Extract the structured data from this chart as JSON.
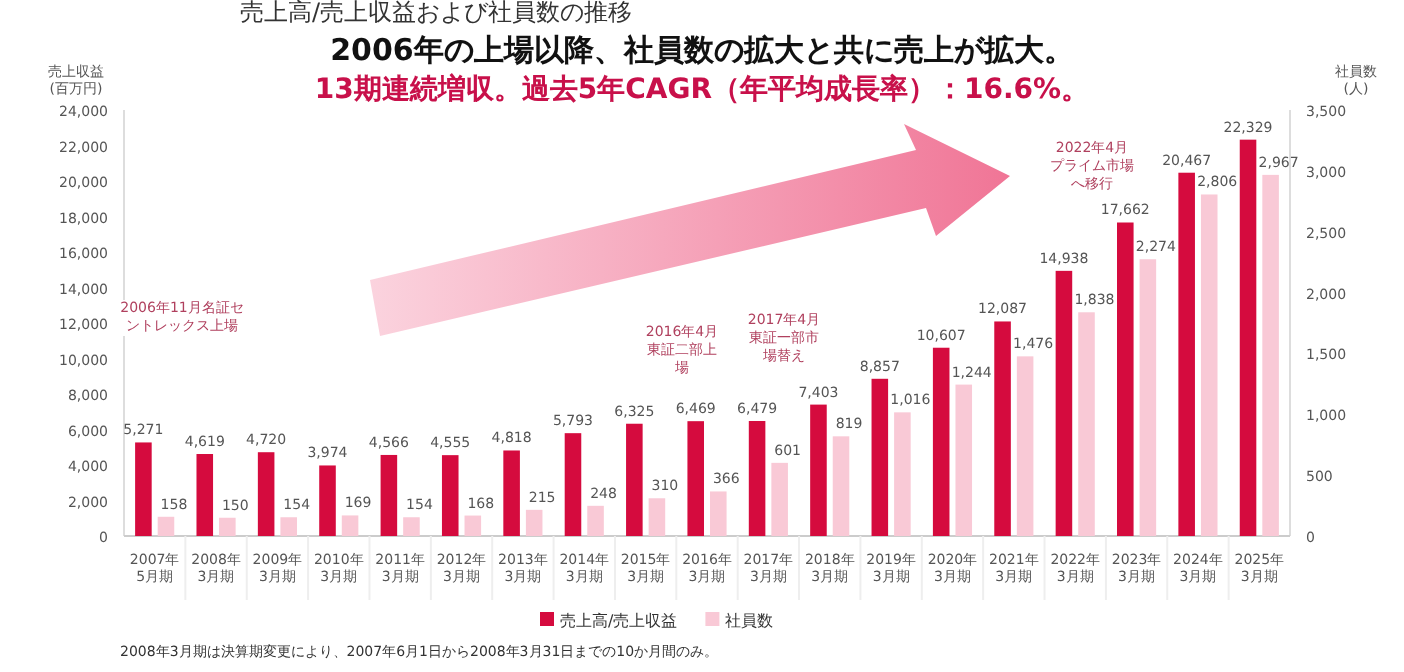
{
  "chart_data": {
    "type": "bar",
    "title": "売上高/売上収益および社員数の推移",
    "subtitle": "2006年の上場以降、社員数の拡大と共に売上が拡大。",
    "ylabel": "売上収益\n(百万円)",
    "y2label": "社員数\n(人)",
    "categories": [
      "2007年\n5月期",
      "2008年\n3月期",
      "2009年\n3月期",
      "2010年\n3月期",
      "2011年\n3月期",
      "2012年\n3月期",
      "2013年\n3月期",
      "2014年\n3月期",
      "2015年\n3月期",
      "2016年\n3月期",
      "2017年\n3月期",
      "2018年\n3月期",
      "2019年\n3月期",
      "2020年\n3月期",
      "2021年\n3月期",
      "2022年\n3月期",
      "2023年\n3月期",
      "2024年\n3月期",
      "2025年\n3月期"
    ],
    "series": [
      {
        "name": "売上高/売上収益",
        "color": "#d50b3e",
        "values": [
          5271,
          4619,
          4720,
          3974,
          4566,
          4555,
          4818,
          5793,
          6325,
          6469,
          6479,
          7403,
          8857,
          10607,
          12087,
          14938,
          17662,
          20467,
          22329
        ],
        "value_labels": [
          "5,271",
          "4,619",
          "4,720",
          "3,974",
          "4,566",
          "4,555",
          "4,818",
          "5,793",
          "6,325",
          "6,469",
          "6,479",
          "7,403",
          "8,857",
          "10,607",
          "12,087",
          "14,938",
          "17,662",
          "20,467",
          "22,329"
        ]
      },
      {
        "name": "社員数",
        "color": "#f9c9d6",
        "axis": "y2",
        "values": [
          158,
          150,
          154,
          169,
          154,
          168,
          215,
          248,
          310,
          366,
          601,
          819,
          1016,
          1244,
          1476,
          1838,
          2274,
          2806,
          2967
        ],
        "value_labels": [
          "158",
          "150",
          "154",
          "169",
          "154",
          "168",
          "215",
          "248",
          "310",
          "366",
          "601",
          "819",
          "1,016",
          "1,244",
          "1,476",
          "1,838",
          "2,274",
          "2,806",
          "2,967"
        ]
      }
    ],
    "ylim": [
      0,
      24000
    ],
    "yticks": [
      {
        "value": 0,
        "label": "0"
      },
      {
        "value": 2000,
        "label": "2,000"
      },
      {
        "value": 4000,
        "label": "4,000"
      },
      {
        "value": 6000,
        "label": "6,000"
      },
      {
        "value": 8000,
        "label": "8,000"
      },
      {
        "value": 10000,
        "label": "10,000"
      },
      {
        "value": 12000,
        "label": "12,000"
      },
      {
        "value": 14000,
        "label": "14,000"
      },
      {
        "value": 16000,
        "label": "16,000"
      },
      {
        "value": 18000,
        "label": "18,000"
      },
      {
        "value": 20000,
        "label": "20,000"
      },
      {
        "value": 22000,
        "label": "22,000"
      },
      {
        "value": 24000,
        "label": "24,000"
      }
    ],
    "y2lim": [
      0,
      3500
    ],
    "y2ticks": [
      {
        "value": 0,
        "label": "0"
      },
      {
        "value": 500,
        "label": "500"
      },
      {
        "value": 1000,
        "label": "1,000"
      },
      {
        "value": 1500,
        "label": "1,500"
      },
      {
        "value": 2000,
        "label": "2,000"
      },
      {
        "value": 2500,
        "label": "2,500"
      },
      {
        "value": 3000,
        "label": "3,000"
      },
      {
        "value": 3500,
        "label": "3,500"
      }
    ],
    "legend": "bottom",
    "annotations": [
      "13期連続増収。過去5年CAGR（年平均成長率）：16.6%。",
      "2006年11月名証セントレックス上場",
      "2016年4月東証二部上場",
      "2017年4月東証一部市場替え",
      "2022年4月プライム市場へ移行",
      "2008年3月期は決算期変更により、2007年6月1日から2008年3月31日までの10か月間のみ。"
    ]
  }
}
